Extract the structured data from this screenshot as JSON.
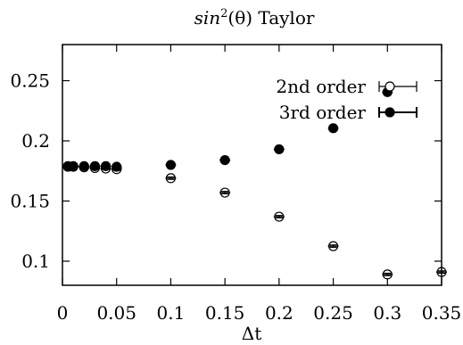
{
  "chart_data": {
    "type": "scatter",
    "title_prefix": "sin",
    "title_sup": "2",
    "title_suffix": "(θ) Taylor",
    "xlabel": "Δt",
    "ylabel": "",
    "xlim": [
      0,
      0.35
    ],
    "ylim": [
      0.08,
      0.28
    ],
    "xticks": [
      {
        "v": 0,
        "label": "0"
      },
      {
        "v": 0.05,
        "label": "0.05"
      },
      {
        "v": 0.1,
        "label": "0.1"
      },
      {
        "v": 0.15,
        "label": "0.15"
      },
      {
        "v": 0.2,
        "label": "0.2"
      },
      {
        "v": 0.25,
        "label": "0.25"
      },
      {
        "v": 0.3,
        "label": "0.3"
      },
      {
        "v": 0.35,
        "label": "0.35"
      }
    ],
    "yticks": [
      {
        "v": 0.1,
        "label": "0.1"
      },
      {
        "v": 0.15,
        "label": "0.15"
      },
      {
        "v": 0.2,
        "label": "0.2"
      },
      {
        "v": 0.25,
        "label": "0.25"
      }
    ],
    "grid": false,
    "legend_position": "top-right",
    "series": [
      {
        "name": "2nd order",
        "marker": "open-circle",
        "points": [
          {
            "x": 0.005,
            "y": 0.1785,
            "err": 0.001
          },
          {
            "x": 0.01,
            "y": 0.1785,
            "err": 0.001
          },
          {
            "x": 0.02,
            "y": 0.178,
            "err": 0.001
          },
          {
            "x": 0.03,
            "y": 0.1775,
            "err": 0.001
          },
          {
            "x": 0.04,
            "y": 0.177,
            "err": 0.001
          },
          {
            "x": 0.05,
            "y": 0.1765,
            "err": 0.001
          },
          {
            "x": 0.1,
            "y": 0.169,
            "err": 0.001
          },
          {
            "x": 0.15,
            "y": 0.157,
            "err": 0.001
          },
          {
            "x": 0.2,
            "y": 0.137,
            "err": 0.001
          },
          {
            "x": 0.25,
            "y": 0.1125,
            "err": 0.001
          },
          {
            "x": 0.3,
            "y": 0.089,
            "err": 0.001
          },
          {
            "x": 0.35,
            "y": 0.091,
            "err": 0.001
          }
        ]
      },
      {
        "name": "3rd order",
        "marker": "filled-circle",
        "points": [
          {
            "x": 0.005,
            "y": 0.179,
            "err": 0.001
          },
          {
            "x": 0.01,
            "y": 0.179,
            "err": 0.001
          },
          {
            "x": 0.02,
            "y": 0.179,
            "err": 0.001
          },
          {
            "x": 0.03,
            "y": 0.179,
            "err": 0.001
          },
          {
            "x": 0.04,
            "y": 0.179,
            "err": 0.001
          },
          {
            "x": 0.05,
            "y": 0.1785,
            "err": 0.001
          },
          {
            "x": 0.1,
            "y": 0.18,
            "err": 0.001
          },
          {
            "x": 0.15,
            "y": 0.184,
            "err": 0.001
          },
          {
            "x": 0.2,
            "y": 0.193,
            "err": 0.001
          },
          {
            "x": 0.25,
            "y": 0.2105,
            "err": 0.001
          },
          {
            "x": 0.3,
            "y": 0.2405,
            "err": 0.001
          }
        ]
      }
    ]
  }
}
